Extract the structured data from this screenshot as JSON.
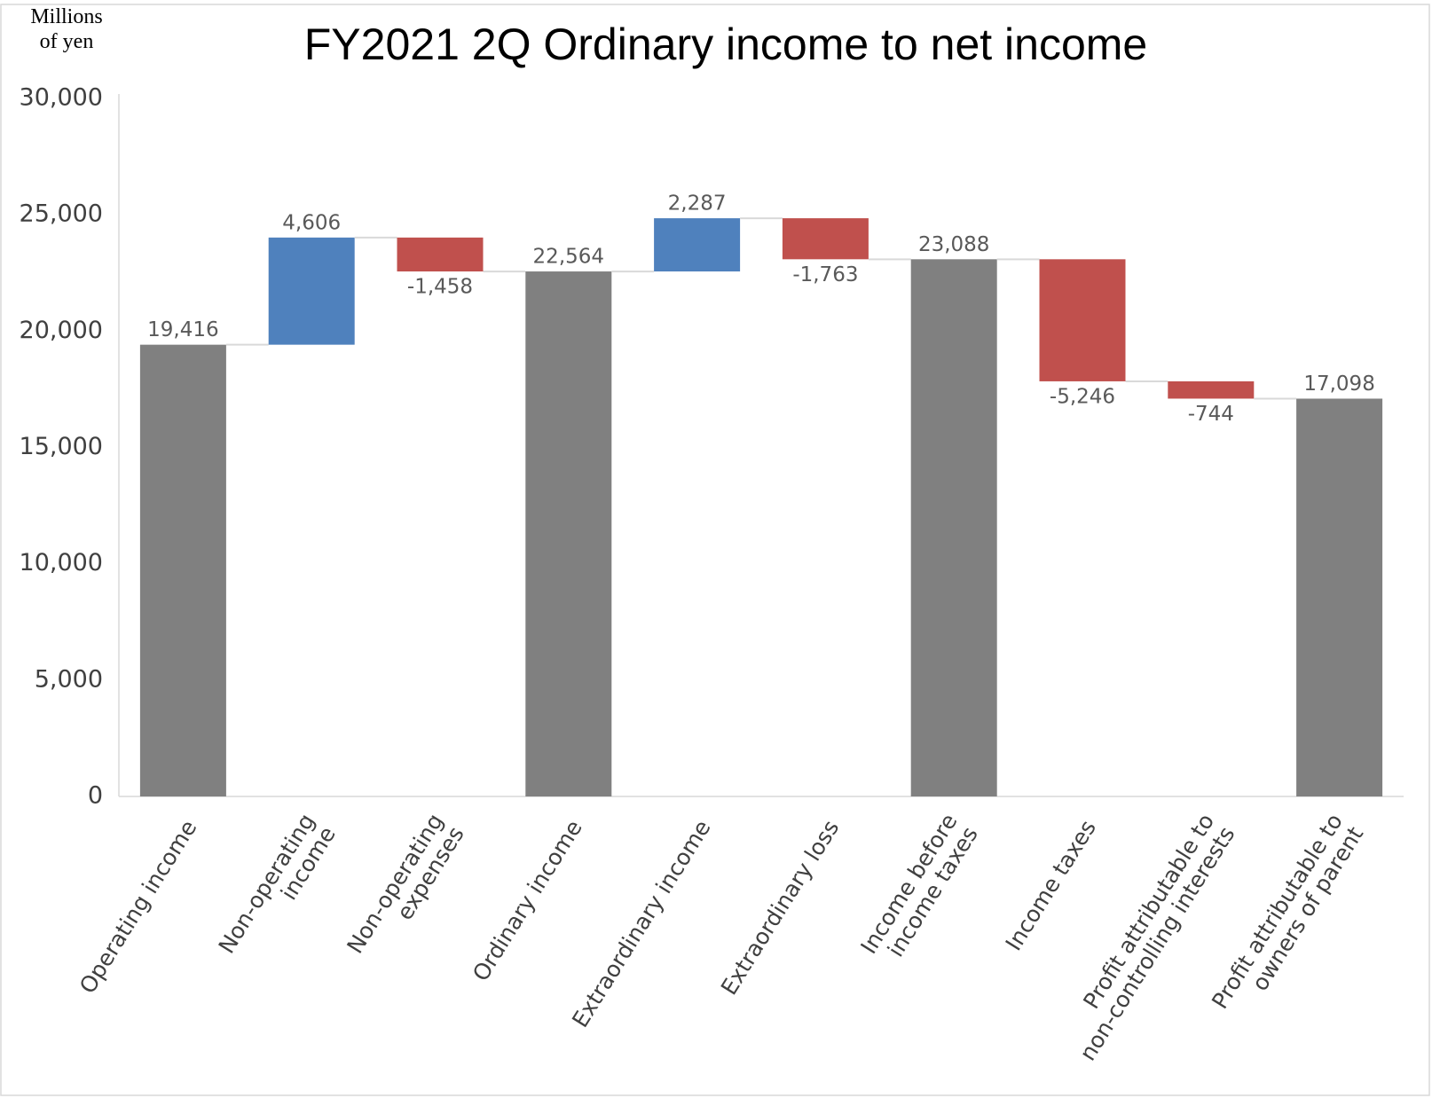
{
  "chart_data": {
    "type": "waterfall",
    "title": "FY2021 2Q Ordinary income to net income",
    "y_label": "Millions\nof yen",
    "categories": [
      "Operating income",
      "Non-operating\nincome",
      "Non-operating\nexpenses",
      "Ordinary income",
      "Extraordinary income",
      "Extraordinary loss",
      "Income before\nincome taxes",
      "Income taxes",
      "Profit attributable to\nnon-controlling interests",
      "Profit attributable to\nowners of parent"
    ],
    "measure": [
      "absolute",
      "relative",
      "relative",
      "absolute",
      "relative",
      "relative",
      "absolute",
      "relative",
      "relative",
      "absolute"
    ],
    "values": [
      19416,
      4606,
      -1458,
      22564,
      2287,
      -1763,
      23088,
      -5246,
      -744,
      17098
    ],
    "value_labels": [
      "19,416",
      "4,606",
      "-1,458",
      "22,564",
      "2,287",
      "-1,763",
      "23,088",
      "-5,246",
      "-744",
      "17,098"
    ],
    "colors": {
      "total": "#808080",
      "increase": "#4f81bd",
      "decrease": "#c0504d"
    },
    "ylim": [
      0,
      30000
    ],
    "yticks": [
      0,
      {
        "value": 5000,
        "label": "5,000"
      },
      {
        "value": 10000,
        "label": "10,000"
      },
      {
        "value": 15000,
        "label": "15,000"
      },
      {
        "value": 20000,
        "label": "20,000"
      },
      {
        "value": 25000,
        "label": "25,000"
      },
      {
        "value": 30000,
        "label": "30,000"
      }
    ],
    "grid": false
  }
}
